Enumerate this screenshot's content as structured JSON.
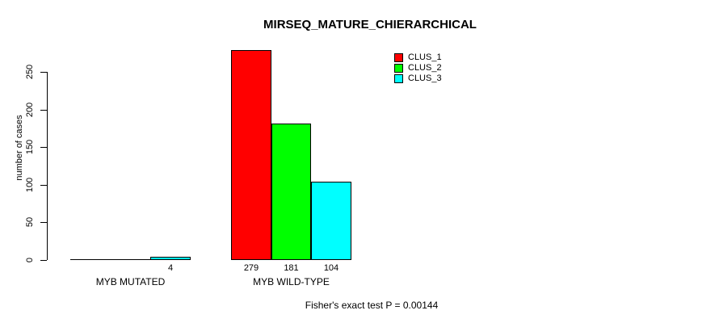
{
  "chart_data": {
    "type": "bar",
    "title": "MIRSEQ_MATURE_CHIERARCHICAL",
    "xlabel": "",
    "ylabel": "number of cases",
    "categories": [
      "MYB MUTATED",
      "MYB WILD-TYPE"
    ],
    "series": [
      {
        "name": "CLUS_1",
        "color": "#ff0000",
        "values": [
          0,
          279
        ]
      },
      {
        "name": "CLUS_2",
        "color": "#00ff00",
        "values": [
          0,
          181
        ]
      },
      {
        "name": "CLUS_3",
        "color": "#00ffff",
        "values": [
          4,
          104
        ]
      }
    ],
    "bar_value_labels": [
      [
        null,
        null,
        "4"
      ],
      [
        "279",
        "181",
        "104"
      ]
    ],
    "yticks": [
      0,
      50,
      100,
      150,
      200,
      250
    ],
    "ylim": [
      0,
      280
    ],
    "grid": false,
    "legend_position": "top-right",
    "footnote": "Fisher's exact test P = 0.00144"
  }
}
